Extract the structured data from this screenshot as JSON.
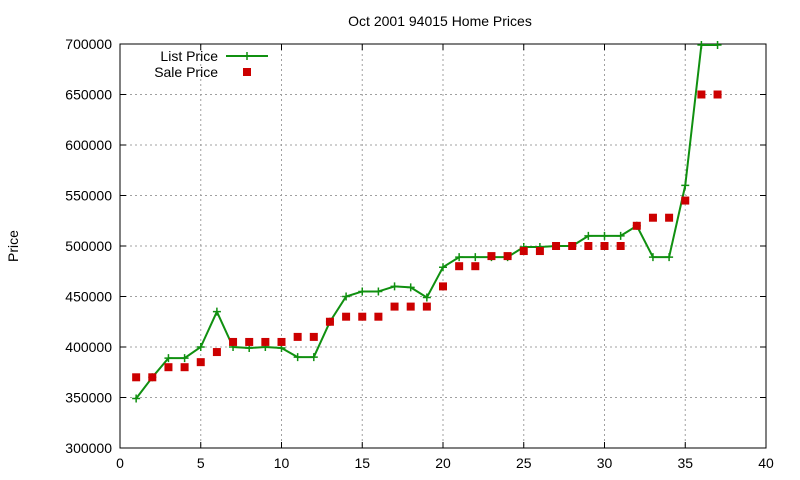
{
  "chart_data": {
    "type": "line",
    "title": "Oct 2001 94015 Home Prices",
    "xlabel": "",
    "ylabel": "Price",
    "xlim": [
      0,
      40
    ],
    "ylim": [
      300000,
      700000
    ],
    "xticks": [
      0,
      5,
      10,
      15,
      20,
      25,
      30,
      35,
      40
    ],
    "yticks": [
      300000,
      350000,
      400000,
      450000,
      500000,
      550000,
      600000,
      650000,
      700000
    ],
    "grid": true,
    "legend_position": "top-left",
    "series": [
      {
        "name": "List Price",
        "style": "line+cross",
        "color": "#109010",
        "x": [
          1,
          2,
          3,
          4,
          5,
          6,
          7,
          8,
          9,
          10,
          11,
          12,
          13,
          14,
          15,
          16,
          17,
          18,
          19,
          20,
          21,
          22,
          23,
          24,
          25,
          26,
          27,
          28,
          29,
          30,
          31,
          32,
          33,
          34,
          35,
          36,
          37
        ],
        "values": [
          349000,
          370000,
          389000,
          389000,
          400000,
          435000,
          400000,
          399000,
          400000,
          399000,
          390000,
          390000,
          425000,
          450000,
          455000,
          455000,
          460000,
          459000,
          449000,
          479000,
          489000,
          489000,
          489000,
          489000,
          499000,
          499000,
          500000,
          500000,
          510000,
          510000,
          510000,
          520000,
          489000,
          489000,
          560000,
          699000,
          699000
        ]
      },
      {
        "name": "Sale Price",
        "style": "square",
        "color": "#cc0000",
        "x": [
          1,
          2,
          3,
          4,
          5,
          6,
          7,
          8,
          9,
          10,
          11,
          12,
          13,
          14,
          15,
          16,
          17,
          18,
          19,
          20,
          21,
          22,
          23,
          24,
          25,
          26,
          27,
          28,
          29,
          30,
          31,
          32,
          33,
          34,
          35,
          36,
          37
        ],
        "values": [
          370000,
          370000,
          380000,
          380000,
          385000,
          395000,
          405000,
          405000,
          405000,
          405000,
          410000,
          410000,
          425000,
          430000,
          430000,
          430000,
          440000,
          440000,
          440000,
          460000,
          480000,
          480000,
          490000,
          490000,
          495000,
          495000,
          500000,
          500000,
          500000,
          500000,
          500000,
          520000,
          528000,
          528000,
          545000,
          650000,
          650000
        ]
      }
    ]
  }
}
